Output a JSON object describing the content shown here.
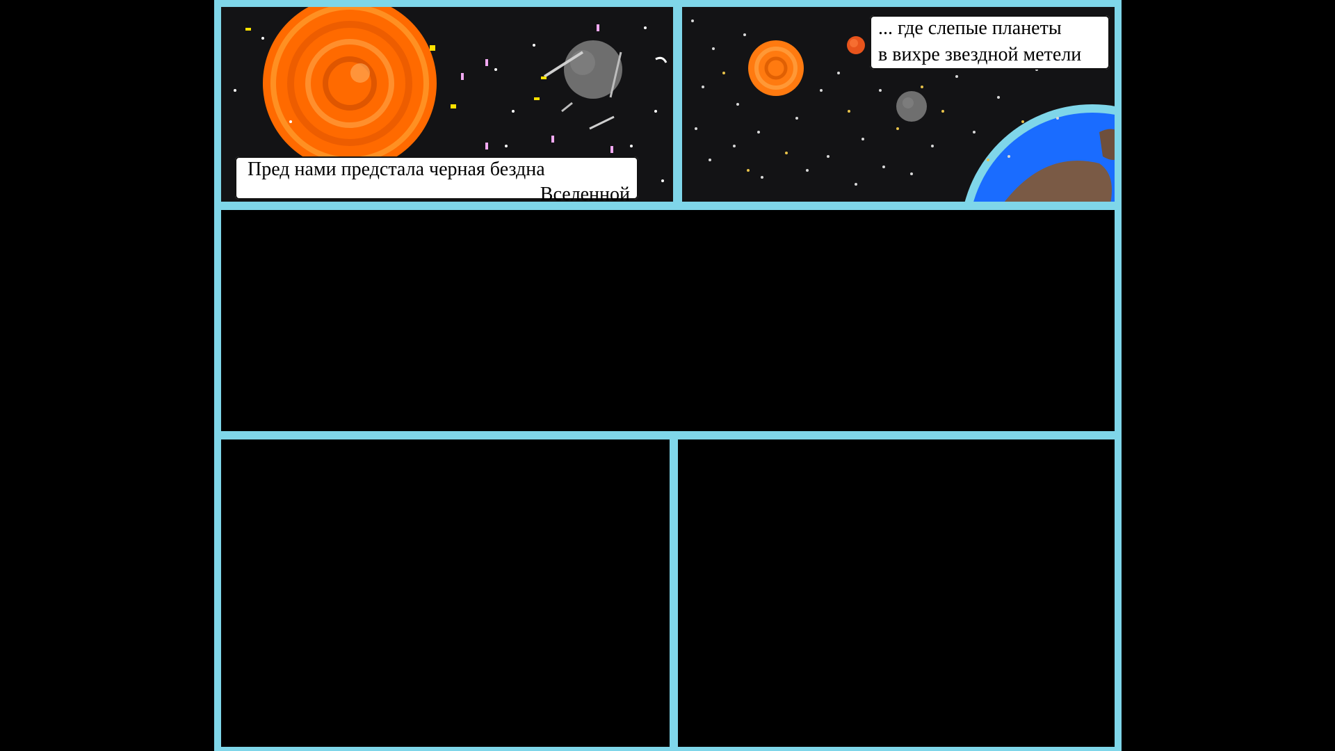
{
  "comic": {
    "panel1": {
      "caption_line1": "Пред нами предстала черная бездна",
      "caption_line2": "Вселенной"
    },
    "panel2": {
      "caption_line1": "... где слепые планеты",
      "caption_line2": "в вихре звездной метели"
    }
  },
  "colors": {
    "frame": "#7fd6e9",
    "space": "#131315",
    "sun": "#ff7a1a",
    "planet_grey": "#7a7a7a",
    "earth_ocean": "#1a6cff",
    "earth_land": "#7a5a45"
  },
  "icons": {
    "panel1": [
      "sun-illustration",
      "grey-planet-illustration",
      "comet-streaks"
    ],
    "panel2": [
      "small-sun-illustration",
      "red-planet-illustration",
      "grey-moon-illustration",
      "earth-illustration"
    ]
  }
}
